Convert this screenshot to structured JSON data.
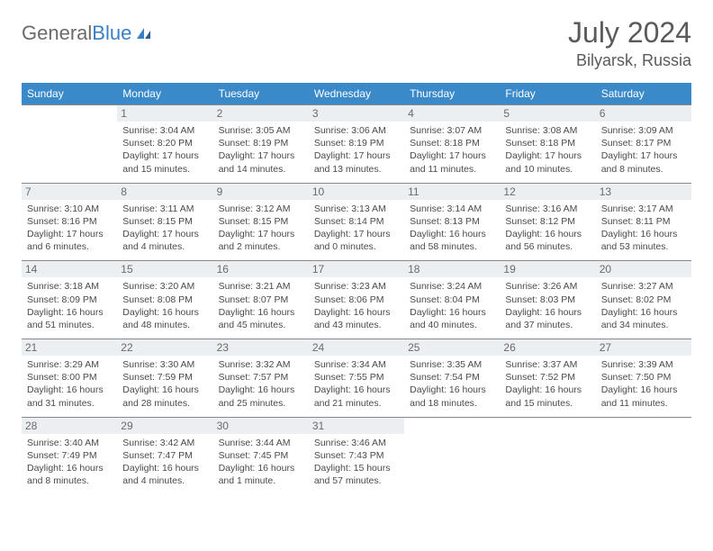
{
  "brand": {
    "part1": "General",
    "part2": "Blue"
  },
  "title": "July 2024",
  "location": "Bilyarsk, Russia",
  "colors": {
    "header_bg": "#3a89c9",
    "header_fg": "#ffffff",
    "daynum_bg": "#eceff2",
    "border": "#888888",
    "text": "#4a4a4a"
  },
  "days": [
    "Sunday",
    "Monday",
    "Tuesday",
    "Wednesday",
    "Thursday",
    "Friday",
    "Saturday"
  ],
  "weeks": [
    [
      {
        "n": "",
        "sr": "",
        "ss": "",
        "dl": ""
      },
      {
        "n": "1",
        "sr": "Sunrise: 3:04 AM",
        "ss": "Sunset: 8:20 PM",
        "dl": "Daylight: 17 hours and 15 minutes."
      },
      {
        "n": "2",
        "sr": "Sunrise: 3:05 AM",
        "ss": "Sunset: 8:19 PM",
        "dl": "Daylight: 17 hours and 14 minutes."
      },
      {
        "n": "3",
        "sr": "Sunrise: 3:06 AM",
        "ss": "Sunset: 8:19 PM",
        "dl": "Daylight: 17 hours and 13 minutes."
      },
      {
        "n": "4",
        "sr": "Sunrise: 3:07 AM",
        "ss": "Sunset: 8:18 PM",
        "dl": "Daylight: 17 hours and 11 minutes."
      },
      {
        "n": "5",
        "sr": "Sunrise: 3:08 AM",
        "ss": "Sunset: 8:18 PM",
        "dl": "Daylight: 17 hours and 10 minutes."
      },
      {
        "n": "6",
        "sr": "Sunrise: 3:09 AM",
        "ss": "Sunset: 8:17 PM",
        "dl": "Daylight: 17 hours and 8 minutes."
      }
    ],
    [
      {
        "n": "7",
        "sr": "Sunrise: 3:10 AM",
        "ss": "Sunset: 8:16 PM",
        "dl": "Daylight: 17 hours and 6 minutes."
      },
      {
        "n": "8",
        "sr": "Sunrise: 3:11 AM",
        "ss": "Sunset: 8:15 PM",
        "dl": "Daylight: 17 hours and 4 minutes."
      },
      {
        "n": "9",
        "sr": "Sunrise: 3:12 AM",
        "ss": "Sunset: 8:15 PM",
        "dl": "Daylight: 17 hours and 2 minutes."
      },
      {
        "n": "10",
        "sr": "Sunrise: 3:13 AM",
        "ss": "Sunset: 8:14 PM",
        "dl": "Daylight: 17 hours and 0 minutes."
      },
      {
        "n": "11",
        "sr": "Sunrise: 3:14 AM",
        "ss": "Sunset: 8:13 PM",
        "dl": "Daylight: 16 hours and 58 minutes."
      },
      {
        "n": "12",
        "sr": "Sunrise: 3:16 AM",
        "ss": "Sunset: 8:12 PM",
        "dl": "Daylight: 16 hours and 56 minutes."
      },
      {
        "n": "13",
        "sr": "Sunrise: 3:17 AM",
        "ss": "Sunset: 8:11 PM",
        "dl": "Daylight: 16 hours and 53 minutes."
      }
    ],
    [
      {
        "n": "14",
        "sr": "Sunrise: 3:18 AM",
        "ss": "Sunset: 8:09 PM",
        "dl": "Daylight: 16 hours and 51 minutes."
      },
      {
        "n": "15",
        "sr": "Sunrise: 3:20 AM",
        "ss": "Sunset: 8:08 PM",
        "dl": "Daylight: 16 hours and 48 minutes."
      },
      {
        "n": "16",
        "sr": "Sunrise: 3:21 AM",
        "ss": "Sunset: 8:07 PM",
        "dl": "Daylight: 16 hours and 45 minutes."
      },
      {
        "n": "17",
        "sr": "Sunrise: 3:23 AM",
        "ss": "Sunset: 8:06 PM",
        "dl": "Daylight: 16 hours and 43 minutes."
      },
      {
        "n": "18",
        "sr": "Sunrise: 3:24 AM",
        "ss": "Sunset: 8:04 PM",
        "dl": "Daylight: 16 hours and 40 minutes."
      },
      {
        "n": "19",
        "sr": "Sunrise: 3:26 AM",
        "ss": "Sunset: 8:03 PM",
        "dl": "Daylight: 16 hours and 37 minutes."
      },
      {
        "n": "20",
        "sr": "Sunrise: 3:27 AM",
        "ss": "Sunset: 8:02 PM",
        "dl": "Daylight: 16 hours and 34 minutes."
      }
    ],
    [
      {
        "n": "21",
        "sr": "Sunrise: 3:29 AM",
        "ss": "Sunset: 8:00 PM",
        "dl": "Daylight: 16 hours and 31 minutes."
      },
      {
        "n": "22",
        "sr": "Sunrise: 3:30 AM",
        "ss": "Sunset: 7:59 PM",
        "dl": "Daylight: 16 hours and 28 minutes."
      },
      {
        "n": "23",
        "sr": "Sunrise: 3:32 AM",
        "ss": "Sunset: 7:57 PM",
        "dl": "Daylight: 16 hours and 25 minutes."
      },
      {
        "n": "24",
        "sr": "Sunrise: 3:34 AM",
        "ss": "Sunset: 7:55 PM",
        "dl": "Daylight: 16 hours and 21 minutes."
      },
      {
        "n": "25",
        "sr": "Sunrise: 3:35 AM",
        "ss": "Sunset: 7:54 PM",
        "dl": "Daylight: 16 hours and 18 minutes."
      },
      {
        "n": "26",
        "sr": "Sunrise: 3:37 AM",
        "ss": "Sunset: 7:52 PM",
        "dl": "Daylight: 16 hours and 15 minutes."
      },
      {
        "n": "27",
        "sr": "Sunrise: 3:39 AM",
        "ss": "Sunset: 7:50 PM",
        "dl": "Daylight: 16 hours and 11 minutes."
      }
    ],
    [
      {
        "n": "28",
        "sr": "Sunrise: 3:40 AM",
        "ss": "Sunset: 7:49 PM",
        "dl": "Daylight: 16 hours and 8 minutes."
      },
      {
        "n": "29",
        "sr": "Sunrise: 3:42 AM",
        "ss": "Sunset: 7:47 PM",
        "dl": "Daylight: 16 hours and 4 minutes."
      },
      {
        "n": "30",
        "sr": "Sunrise: 3:44 AM",
        "ss": "Sunset: 7:45 PM",
        "dl": "Daylight: 16 hours and 1 minute."
      },
      {
        "n": "31",
        "sr": "Sunrise: 3:46 AM",
        "ss": "Sunset: 7:43 PM",
        "dl": "Daylight: 15 hours and 57 minutes."
      },
      {
        "n": "",
        "sr": "",
        "ss": "",
        "dl": ""
      },
      {
        "n": "",
        "sr": "",
        "ss": "",
        "dl": ""
      },
      {
        "n": "",
        "sr": "",
        "ss": "",
        "dl": ""
      }
    ]
  ]
}
